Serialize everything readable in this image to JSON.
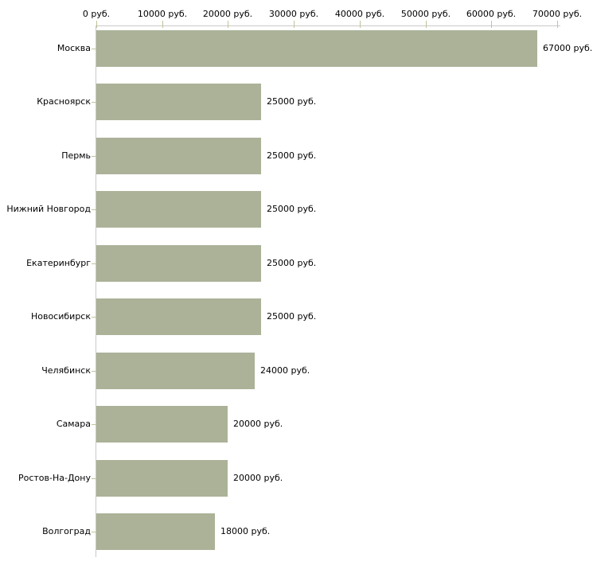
{
  "chart_data": {
    "type": "bar",
    "orientation": "horizontal",
    "title": "",
    "categories": [
      "Москва",
      "Красноярск",
      "Пермь",
      "Нижний Новгород",
      "Екатеринбург",
      "Новосибирск",
      "Челябинск",
      "Самара",
      "Ростов-На-Дону",
      "Волгоград"
    ],
    "values": [
      67000,
      25000,
      25000,
      25000,
      25000,
      25000,
      24000,
      20000,
      20000,
      18000
    ],
    "value_labels": [
      "67000 руб.",
      "25000 руб.",
      "25000 руб.",
      "25000 руб.",
      "25000 руб.",
      "25000 руб.",
      "24000 руб.",
      "20000 руб.",
      "20000 руб.",
      "18000 руб."
    ],
    "x_tick_labels": [
      "0 руб.",
      "10000 руб.",
      "20000 руб.",
      "30000 руб.",
      "40000 руб.",
      "50000 руб.",
      "60000 руб.",
      "70000 руб."
    ],
    "xlim": [
      0,
      70000
    ],
    "x_tick_step": 10000,
    "ylabel": "",
    "xlabel": "",
    "grid": false,
    "legend": null,
    "colors": {
      "bar": "#abb298",
      "tick": "#c2c29a",
      "axis_line": "#c9c9c9",
      "text": "#000000",
      "background": "#ffffff"
    }
  }
}
